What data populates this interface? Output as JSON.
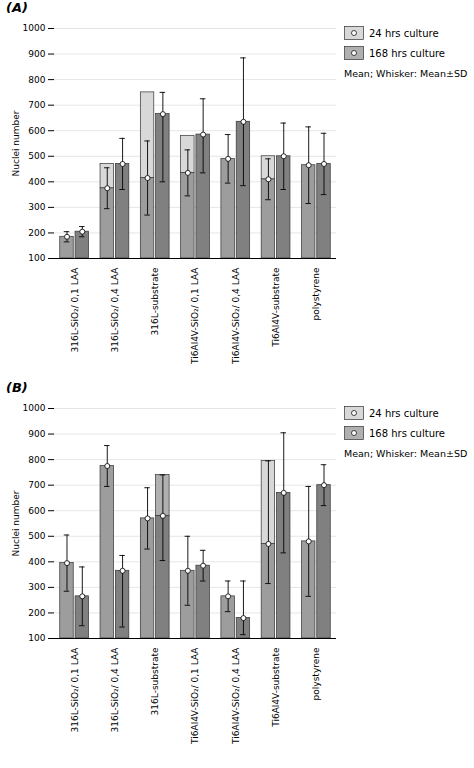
{
  "chart_data": [
    {
      "type": "bar",
      "title": "(A)",
      "categories": [
        "316L-SiO₂/ 0,1 LAA",
        "316L-SiO₂/ 0,4 LAA",
        "316L-substrate",
        "Ti6Al4V-SiO₂/ 0,1 LAA",
        "Ti6Al4V-SiO₂/ 0,4 LAA",
        "Ti6Al4V-substrate",
        "polystyrene"
      ],
      "series": [
        {
          "name": "24 hrs culture",
          "color": "#d8d8d8",
          "values": [
            185,
            375,
            415,
            435,
            490,
            410,
            465
          ],
          "bar_top": [
            185,
            470,
            750,
            580,
            490,
            500,
            465
          ],
          "err_lo": [
            20,
            80,
            145,
            90,
            95,
            80,
            150
          ],
          "err_hi": [
            20,
            80,
            145,
            90,
            95,
            80,
            150
          ]
        },
        {
          "name": "168 hrs culture",
          "color": "#b0b0b0",
          "values": [
            205,
            470,
            665,
            585,
            635,
            500,
            470
          ],
          "bar_top": [
            205,
            470,
            665,
            585,
            635,
            500,
            470
          ],
          "err_lo": [
            20,
            100,
            265,
            150,
            250,
            130,
            120
          ],
          "err_hi": [
            20,
            100,
            85,
            140,
            250,
            130,
            120
          ]
        }
      ],
      "ylabel": "Nuclei number",
      "ylim": [
        100,
        1000
      ],
      "yticks": [
        100,
        200,
        300,
        400,
        500,
        600,
        700,
        800,
        900,
        1000
      ],
      "grid": true,
      "legend": "right",
      "annotation": "Mean; Whisker: Mean±SD"
    },
    {
      "type": "bar",
      "title": "(B)",
      "categories": [
        "316L-SiO₂/ 0,1 LAA",
        "316L-SiO₂/ 0,4 LAA",
        "316L-substrate",
        "Ti6Al4V-SiO₂/ 0,1 LAA",
        "Ti6Al4V-SiO₂/ 0,4 LAA",
        "Ti6Al4V-substrate",
        "polystyrene"
      ],
      "series": [
        {
          "name": "24 hrs culture",
          "color": "#d8d8d8",
          "values": [
            395,
            775,
            570,
            365,
            265,
            470,
            480
          ],
          "bar_top": [
            395,
            775,
            570,
            365,
            265,
            795,
            480
          ],
          "err_lo": [
            110,
            80,
            120,
            135,
            60,
            155,
            215
          ],
          "err_hi": [
            110,
            80,
            120,
            135,
            60,
            325,
            215
          ]
        },
        {
          "name": "168 hrs culture",
          "color": "#b0b0b0",
          "values": [
            265,
            365,
            580,
            385,
            180,
            670,
            700
          ],
          "bar_top": [
            265,
            365,
            740,
            385,
            180,
            670,
            700
          ],
          "err_lo": [
            115,
            220,
            175,
            60,
            65,
            235,
            80
          ],
          "err_hi": [
            115,
            60,
            160,
            60,
            145,
            235,
            80
          ]
        }
      ],
      "ylabel": "Nuclei number",
      "ylim": [
        100,
        1000
      ],
      "yticks": [
        100,
        200,
        300,
        400,
        500,
        600,
        700,
        800,
        900,
        1000
      ],
      "grid": true,
      "legend": "right",
      "annotation": "Mean; Whisker: Mean±SD"
    }
  ]
}
